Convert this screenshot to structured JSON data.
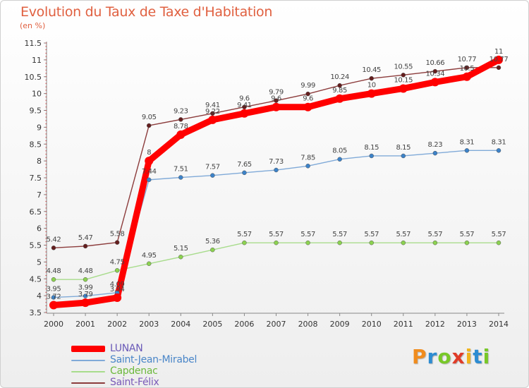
{
  "chart_data": {
    "type": "line",
    "title": "Evolution du Taux de Taxe d'Habitation",
    "subtitle": "(en %)",
    "x": [
      "2000",
      "2001",
      "2002",
      "2003",
      "2004",
      "2005",
      "2006",
      "2007",
      "2008",
      "2009",
      "2010",
      "2011",
      "2012",
      "2013",
      "2014"
    ],
    "ylim": [
      3.5,
      11.5
    ],
    "yticks": [
      "3.5",
      "4",
      "4.5",
      "5",
      "5.5",
      "6",
      "6.5",
      "7",
      "7.5",
      "8",
      "8.5",
      "9",
      "9.5",
      "10",
      "10.5",
      "11",
      "11.5"
    ],
    "grid": false,
    "legend_position": "bottom-left",
    "series": [
      {
        "name": "LUNAN",
        "color": "#ff0000",
        "marker_color": "#ff0000",
        "values": [
          3.72,
          3.79,
          3.94,
          8,
          8.78,
          9.22,
          9.41,
          9.6,
          9.6,
          9.85,
          10,
          10.15,
          10.34,
          10.5,
          11
        ],
        "labels": [
          "3.72",
          "3.79",
          "3.94",
          "8",
          "8.78",
          "9.22",
          "9.41",
          "9.6",
          "9.6",
          "9.85",
          "10",
          "10.15",
          "10.34",
          "10.5",
          "11"
        ]
      },
      {
        "name": "Saint-Jean-Mirabel",
        "color": "#80aad8",
        "marker_color": "#3c82c8",
        "values": [
          3.95,
          3.99,
          4.09,
          7.44,
          7.51,
          7.57,
          7.65,
          7.73,
          7.85,
          8.05,
          8.15,
          8.15,
          8.23,
          8.31,
          8.31
        ],
        "labels": [
          "3.95",
          "3.99",
          "4.09",
          "7.44",
          "7.51",
          "7.57",
          "7.65",
          "7.73",
          "7.85",
          "8.05",
          "8.15",
          "8.15",
          "8.23",
          "8.31",
          "8.31"
        ]
      },
      {
        "name": "Capdenac",
        "color": "#a8dc8c",
        "marker_color": "#8cd250",
        "values": [
          4.48,
          4.48,
          4.75,
          4.95,
          5.15,
          5.36,
          5.57,
          5.57,
          5.57,
          5.57,
          5.57,
          5.57,
          5.57,
          5.57,
          5.57
        ],
        "labels": [
          "4.48",
          "4.48",
          "4.75",
          "4.95",
          "5.15",
          "5.36",
          "5.57",
          "5.57",
          "5.57",
          "5.57",
          "5.57",
          "5.57",
          "5.57",
          "5.57",
          "5.57"
        ]
      },
      {
        "name": "Saint-Félix",
        "color": "#8c3c3c",
        "marker_color": "#641e1e",
        "values": [
          5.42,
          5.47,
          5.58,
          9.05,
          9.23,
          9.41,
          9.6,
          9.79,
          9.99,
          10.24,
          10.45,
          10.55,
          10.66,
          10.77,
          10.77
        ],
        "labels": [
          "5.42",
          "5.47",
          "5.58",
          "9.05",
          "9.23",
          "9.41",
          "9.6",
          "9.79",
          "9.99",
          "10.24",
          "10.45",
          "10.55",
          "10.66",
          "10.77",
          "10.77"
        ]
      }
    ]
  },
  "legend": {
    "items": [
      {
        "label": "LUNAN",
        "color": "#ff0000"
      },
      {
        "label": "Saint-Jean-Mirabel",
        "color": "#80aad8"
      },
      {
        "label": "Capdenac",
        "color": "#a8dc8c"
      },
      {
        "label": "Saint-Félix",
        "color": "#8c3c3c"
      }
    ]
  },
  "logo": {
    "text": "Proxiti",
    "colors": [
      "#f08c1e",
      "#2d8cd2",
      "#78c828",
      "#e03c28",
      "#f0b41e",
      "#2d8cd2",
      "#78c828"
    ]
  }
}
